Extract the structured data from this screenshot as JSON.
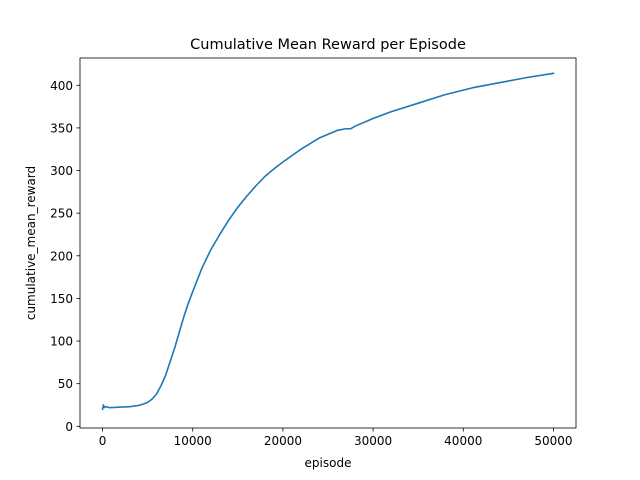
{
  "chart_data": {
    "type": "line",
    "title": "Cumulative Mean Reward per Episode",
    "xlabel": "episode",
    "ylabel": "cumulative_mean_reward",
    "xlim": [
      -2500,
      52500
    ],
    "ylim": [
      -2,
      432
    ],
    "xticks": [
      0,
      10000,
      20000,
      30000,
      40000,
      50000
    ],
    "yticks": [
      0,
      50,
      100,
      150,
      200,
      250,
      300,
      350,
      400
    ],
    "grid": false,
    "series": [
      {
        "color": "#1f77b4",
        "x": [
          0,
          100,
          200,
          400,
          700,
          1000,
          2000,
          3000,
          4000,
          4500,
          5000,
          5500,
          6000,
          6500,
          7000,
          7500,
          8000,
          8500,
          9000,
          9500,
          10000,
          11000,
          12000,
          13000,
          14000,
          15000,
          16000,
          17000,
          18000,
          19000,
          20000,
          22000,
          24000,
          26000,
          27000,
          27500,
          28000,
          30000,
          32000,
          35000,
          38000,
          41000,
          44000,
          47000,
          50000
        ],
        "y": [
          20,
          25,
          22,
          23,
          22,
          22,
          22.5,
          23,
          24.5,
          26,
          28,
          32,
          38,
          48,
          60,
          76,
          92,
          110,
          128,
          144,
          158,
          185,
          207,
          225,
          242,
          257,
          270,
          282,
          293,
          302,
          310,
          325,
          338,
          347,
          349,
          349,
          352,
          361,
          369,
          379,
          389,
          397,
          403,
          409,
          414
        ]
      }
    ]
  }
}
